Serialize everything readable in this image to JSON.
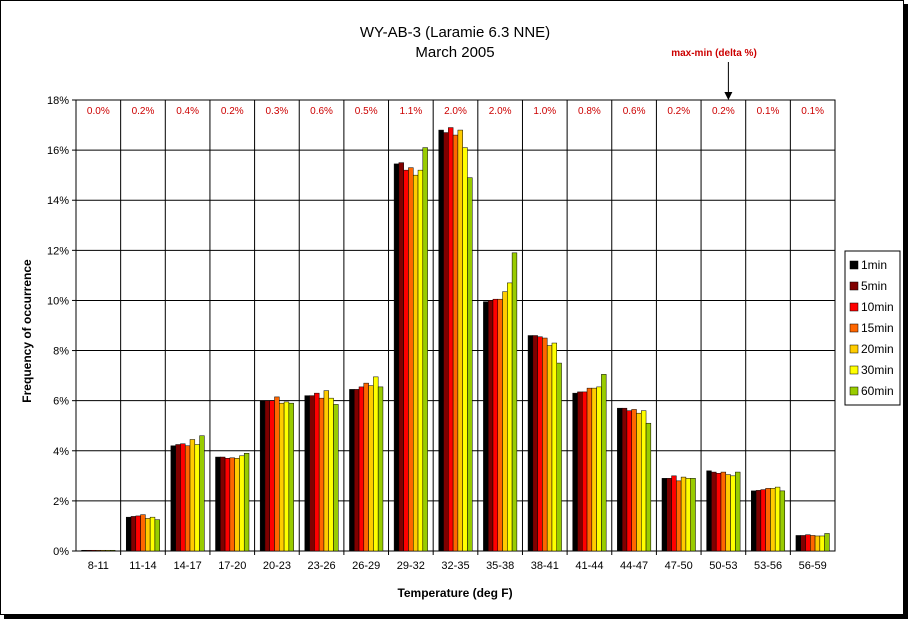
{
  "chart_data": {
    "type": "bar",
    "title": "WY-AB-3 (Laramie 6.3 NNE)",
    "subtitle": "March 2005",
    "xlabel": "Temperature (deg F)",
    "ylabel": "Frequency of occurrence",
    "ylim": [
      0,
      18
    ],
    "y_unit": "%",
    "yticks": [
      "0%",
      "2%",
      "4%",
      "6%",
      "8%",
      "10%",
      "12%",
      "14%",
      "16%",
      "18%"
    ],
    "grid": true,
    "legend_position": "right",
    "categories": [
      "8-11",
      "11-14",
      "14-17",
      "17-20",
      "20-23",
      "23-26",
      "26-29",
      "29-32",
      "32-35",
      "35-38",
      "38-41",
      "41-44",
      "44-47",
      "47-50",
      "50-53",
      "53-56",
      "56-59"
    ],
    "series": [
      {
        "name": "1min",
        "color": "#000000",
        "values": [
          0.03,
          1.35,
          4.2,
          3.75,
          6.0,
          6.2,
          6.45,
          15.45,
          16.8,
          9.95,
          8.6,
          6.3,
          5.7,
          2.9,
          3.2,
          2.4,
          0.62
        ]
      },
      {
        "name": "5min",
        "color": "#800000",
        "values": [
          0.03,
          1.38,
          4.25,
          3.75,
          6.0,
          6.2,
          6.45,
          15.5,
          16.7,
          10.0,
          8.6,
          6.35,
          5.7,
          2.9,
          3.15,
          2.42,
          0.62
        ]
      },
      {
        "name": "10min",
        "color": "#ff0000",
        "values": [
          0.03,
          1.4,
          4.28,
          3.7,
          6.0,
          6.3,
          6.55,
          15.2,
          16.9,
          10.05,
          8.55,
          6.35,
          5.6,
          3.0,
          3.1,
          2.45,
          0.65
        ]
      },
      {
        "name": "15min",
        "color": "#ff6600",
        "values": [
          0.03,
          1.45,
          4.2,
          3.72,
          6.15,
          6.1,
          6.7,
          15.3,
          16.6,
          10.05,
          8.5,
          6.5,
          5.65,
          2.8,
          3.15,
          2.5,
          0.62
        ]
      },
      {
        "name": "20min",
        "color": "#ffcc00",
        "values": [
          0.03,
          1.3,
          4.45,
          3.7,
          5.9,
          6.4,
          6.6,
          15.0,
          16.8,
          10.35,
          8.2,
          6.5,
          5.5,
          2.95,
          3.05,
          2.5,
          0.6
        ]
      },
      {
        "name": "30min",
        "color": "#ffff00",
        "values": [
          0.03,
          1.35,
          4.25,
          3.8,
          5.95,
          6.1,
          6.95,
          15.2,
          16.1,
          10.7,
          8.3,
          6.55,
          5.6,
          2.9,
          3.0,
          2.55,
          0.6
        ]
      },
      {
        "name": "60min",
        "color": "#99cc00",
        "values": [
          0.03,
          1.25,
          4.6,
          3.9,
          5.9,
          5.85,
          6.55,
          16.1,
          14.9,
          11.9,
          7.5,
          7.05,
          5.1,
          2.9,
          3.15,
          2.4,
          0.7
        ]
      }
    ],
    "delta_labels": [
      "0.0%",
      "0.2%",
      "0.4%",
      "0.2%",
      "0.3%",
      "0.6%",
      "0.5%",
      "1.1%",
      "2.0%",
      "2.0%",
      "1.0%",
      "0.8%",
      "0.6%",
      "0.2%",
      "0.2%",
      "0.1%",
      "0.1%"
    ],
    "annotation": {
      "text": "max-min (delta %)",
      "target_category": "50-53"
    }
  }
}
